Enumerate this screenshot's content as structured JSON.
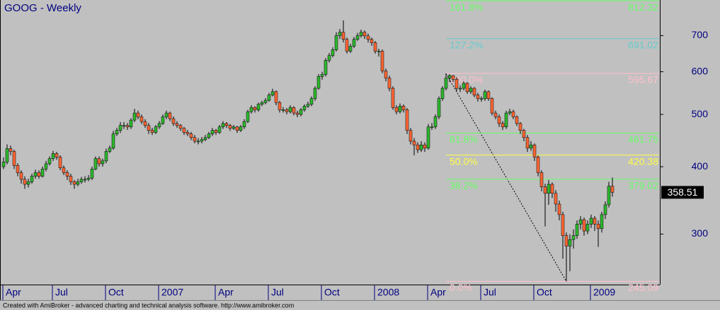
{
  "chart_data": {
    "type": "candlestick",
    "title": "GOOG - Weekly",
    "footer": "Created with AmiBroker - advanced charting and technical analysis software. http://www.amibroker.com",
    "log_scale": true,
    "grid": false,
    "up_color": "#2db82d",
    "down_color": "#ff6633",
    "ylim": [
      244,
      815
    ],
    "yticks": [
      300,
      400,
      500,
      600,
      700
    ],
    "xticks": [
      {
        "value": 0,
        "label": "Apr"
      },
      {
        "value": 14,
        "label": "Jul"
      },
      {
        "value": 29,
        "label": "Oct"
      },
      {
        "value": 44,
        "label": "2007"
      },
      {
        "value": 60,
        "label": "Apr"
      },
      {
        "value": 75,
        "label": "Jul"
      },
      {
        "value": 90,
        "label": "Oct"
      },
      {
        "value": 105,
        "label": "2008"
      },
      {
        "value": 120,
        "label": "Apr"
      },
      {
        "value": 135,
        "label": "Jul"
      },
      {
        "value": 150,
        "label": "Oct"
      },
      {
        "value": 166,
        "label": "2009"
      }
    ],
    "fibonacci": [
      {
        "label": "161.8%",
        "value": 812.32,
        "color": "#66ff66"
      },
      {
        "label": "127.2%",
        "value": 691.02,
        "color": "#66cccc"
      },
      {
        "label": "100.0%",
        "value": 595.67,
        "color": "#ffc0cb"
      },
      {
        "label": "61.8%",
        "value": 461.75,
        "color": "#66ff66"
      },
      {
        "label": "50.0%",
        "value": 420.38,
        "color": "#ffff44"
      },
      {
        "label": "38.2%",
        "value": 379.02,
        "color": "#66ff66"
      },
      {
        "label": "0.0%",
        "value": 245.09,
        "color": "#ffc0cb"
      }
    ],
    "candles": [
      [
        400,
        416,
        396,
        408
      ],
      [
        408,
        440,
        404,
        432
      ],
      [
        432,
        438,
        420,
        427
      ],
      [
        427,
        430,
        396,
        402
      ],
      [
        402,
        406,
        384,
        390
      ],
      [
        390,
        394,
        372,
        379
      ],
      [
        379,
        384,
        364,
        371
      ],
      [
        371,
        380,
        366,
        375
      ],
      [
        375,
        388,
        372,
        384
      ],
      [
        384,
        395,
        380,
        390
      ],
      [
        390,
        394,
        380,
        384
      ],
      [
        384,
        400,
        382,
        396
      ],
      [
        396,
        410,
        392,
        405
      ],
      [
        405,
        418,
        402,
        414
      ],
      [
        414,
        428,
        410,
        423
      ],
      [
        423,
        426,
        412,
        417
      ],
      [
        417,
        420,
        394,
        398
      ],
      [
        398,
        402,
        386,
        390
      ],
      [
        390,
        394,
        378,
        384
      ],
      [
        384,
        388,
        370,
        375
      ],
      [
        375,
        378,
        364,
        371
      ],
      [
        371,
        380,
        368,
        375
      ],
      [
        375,
        383,
        372,
        379
      ],
      [
        379,
        384,
        374,
        379
      ],
      [
        379,
        386,
        376,
        381
      ],
      [
        381,
        400,
        378,
        396
      ],
      [
        396,
        418,
        394,
        414
      ],
      [
        414,
        418,
        400,
        405
      ],
      [
        405,
        414,
        400,
        410
      ],
      [
        410,
        432,
        406,
        427
      ],
      [
        427,
        438,
        424,
        433
      ],
      [
        433,
        466,
        430,
        460
      ],
      [
        460,
        472,
        456,
        467
      ],
      [
        467,
        484,
        462,
        477
      ],
      [
        477,
        484,
        470,
        477
      ],
      [
        477,
        482,
        468,
        474
      ],
      [
        474,
        492,
        470,
        488
      ],
      [
        488,
        512,
        484,
        503
      ],
      [
        503,
        508,
        490,
        495
      ],
      [
        495,
        500,
        480,
        485
      ],
      [
        485,
        490,
        472,
        477
      ],
      [
        477,
        482,
        460,
        467
      ],
      [
        467,
        472,
        458,
        463
      ],
      [
        463,
        478,
        460,
        474
      ],
      [
        474,
        486,
        470,
        481
      ],
      [
        481,
        500,
        478,
        495
      ],
      [
        495,
        508,
        490,
        503
      ],
      [
        503,
        506,
        486,
        491
      ],
      [
        491,
        496,
        476,
        481
      ],
      [
        481,
        486,
        472,
        477
      ],
      [
        477,
        480,
        466,
        471
      ],
      [
        471,
        474,
        458,
        463
      ],
      [
        463,
        468,
        456,
        460
      ],
      [
        460,
        464,
        448,
        453
      ],
      [
        453,
        458,
        442,
        446
      ],
      [
        446,
        452,
        440,
        446
      ],
      [
        446,
        454,
        442,
        449
      ],
      [
        449,
        458,
        446,
        453
      ],
      [
        453,
        464,
        450,
        460
      ],
      [
        460,
        472,
        456,
        467
      ],
      [
        467,
        470,
        458,
        463
      ],
      [
        463,
        478,
        460,
        474
      ],
      [
        474,
        486,
        470,
        481
      ],
      [
        481,
        484,
        472,
        477
      ],
      [
        477,
        480,
        466,
        471
      ],
      [
        471,
        478,
        468,
        474
      ],
      [
        474,
        476,
        462,
        467
      ],
      [
        467,
        478,
        464,
        474
      ],
      [
        474,
        490,
        470,
        485
      ],
      [
        485,
        510,
        482,
        506
      ],
      [
        506,
        520,
        502,
        515
      ],
      [
        515,
        518,
        504,
        510
      ],
      [
        510,
        526,
        506,
        522
      ],
      [
        522,
        530,
        518,
        526
      ],
      [
        526,
        536,
        522,
        531
      ],
      [
        531,
        548,
        528,
        543
      ],
      [
        543,
        558,
        540,
        551
      ],
      [
        551,
        554,
        520,
        526
      ],
      [
        526,
        530,
        504,
        510
      ],
      [
        510,
        516,
        504,
        510
      ],
      [
        510,
        514,
        500,
        506
      ],
      [
        506,
        520,
        502,
        515
      ],
      [
        515,
        518,
        498,
        503
      ],
      [
        503,
        508,
        494,
        500
      ],
      [
        500,
        514,
        496,
        510
      ],
      [
        510,
        522,
        506,
        518
      ],
      [
        518,
        528,
        514,
        522
      ],
      [
        522,
        540,
        518,
        535
      ],
      [
        535,
        564,
        530,
        559
      ],
      [
        559,
        594,
        556,
        588
      ],
      [
        588,
        600,
        580,
        593
      ],
      [
        593,
        636,
        588,
        630
      ],
      [
        630,
        650,
        624,
        643
      ],
      [
        643,
        666,
        638,
        659
      ],
      [
        659,
        710,
        654,
        700
      ],
      [
        700,
        720,
        690,
        710
      ],
      [
        710,
        747,
        680,
        689
      ],
      [
        689,
        694,
        648,
        655
      ],
      [
        655,
        676,
        650,
        669
      ],
      [
        669,
        696,
        664,
        689
      ],
      [
        689,
        708,
        684,
        700
      ],
      [
        700,
        718,
        694,
        710
      ],
      [
        710,
        716,
        690,
        699
      ],
      [
        699,
        706,
        680,
        689
      ],
      [
        689,
        694,
        670,
        679
      ],
      [
        679,
        684,
        648,
        655
      ],
      [
        655,
        662,
        640,
        655
      ],
      [
        655,
        660,
        596,
        602
      ],
      [
        602,
        608,
        576,
        584
      ],
      [
        584,
        590,
        552,
        559
      ],
      [
        559,
        564,
        510,
        515
      ],
      [
        515,
        520,
        500,
        506
      ],
      [
        506,
        524,
        502,
        518
      ],
      [
        518,
        522,
        504,
        510
      ],
      [
        510,
        514,
        460,
        467
      ],
      [
        467,
        472,
        440,
        446
      ],
      [
        446,
        452,
        420,
        439
      ],
      [
        439,
        444,
        424,
        430
      ],
      [
        430,
        446,
        426,
        439
      ],
      [
        439,
        444,
        426,
        433
      ],
      [
        433,
        480,
        430,
        474
      ],
      [
        474,
        482,
        468,
        474
      ],
      [
        474,
        500,
        470,
        495
      ],
      [
        495,
        540,
        490,
        535
      ],
      [
        535,
        564,
        530,
        559
      ],
      [
        559,
        595.67,
        554,
        584
      ],
      [
        584,
        594,
        574,
        590
      ],
      [
        590,
        592,
        574,
        581
      ],
      [
        581,
        586,
        552,
        559
      ],
      [
        559,
        566,
        550,
        559
      ],
      [
        559,
        576,
        554,
        571
      ],
      [
        571,
        574,
        546,
        551
      ],
      [
        551,
        564,
        546,
        559
      ],
      [
        559,
        562,
        538,
        543
      ],
      [
        543,
        548,
        528,
        535
      ],
      [
        535,
        540,
        528,
        535
      ],
      [
        535,
        556,
        530,
        551
      ],
      [
        551,
        554,
        530,
        535
      ],
      [
        535,
        538,
        498,
        503
      ],
      [
        503,
        508,
        490,
        495
      ],
      [
        495,
        500,
        474,
        481
      ],
      [
        481,
        486,
        468,
        474
      ],
      [
        474,
        508,
        470,
        503
      ],
      [
        503,
        512,
        498,
        506
      ],
      [
        506,
        510,
        490,
        495
      ],
      [
        495,
        498,
        476,
        481
      ],
      [
        481,
        484,
        460,
        467
      ],
      [
        467,
        470,
        446,
        453
      ],
      [
        453,
        458,
        426,
        433
      ],
      [
        433,
        446,
        428,
        439
      ],
      [
        439,
        442,
        410,
        417
      ],
      [
        417,
        420,
        384,
        390
      ],
      [
        390,
        394,
        360,
        367
      ],
      [
        367,
        372,
        310,
        357
      ],
      [
        357,
        378,
        340,
        371
      ],
      [
        371,
        374,
        350,
        357
      ],
      [
        357,
        362,
        330,
        341
      ],
      [
        341,
        346,
        318,
        326
      ],
      [
        326,
        330,
        270,
        298
      ],
      [
        298,
        302,
        245.09,
        285
      ],
      [
        285,
        300,
        256,
        293
      ],
      [
        293,
        306,
        282,
        298
      ],
      [
        298,
        318,
        294,
        313
      ],
      [
        313,
        324,
        306,
        319
      ],
      [
        319,
        322,
        298,
        304
      ],
      [
        304,
        318,
        300,
        313
      ],
      [
        313,
        326,
        308,
        321
      ],
      [
        321,
        324,
        304,
        313
      ],
      [
        313,
        318,
        284,
        307
      ],
      [
        307,
        330,
        302,
        326
      ],
      [
        326,
        345,
        320,
        340
      ],
      [
        340,
        375,
        336,
        368
      ],
      [
        368,
        382,
        352,
        358.51
      ]
    ]
  }
}
